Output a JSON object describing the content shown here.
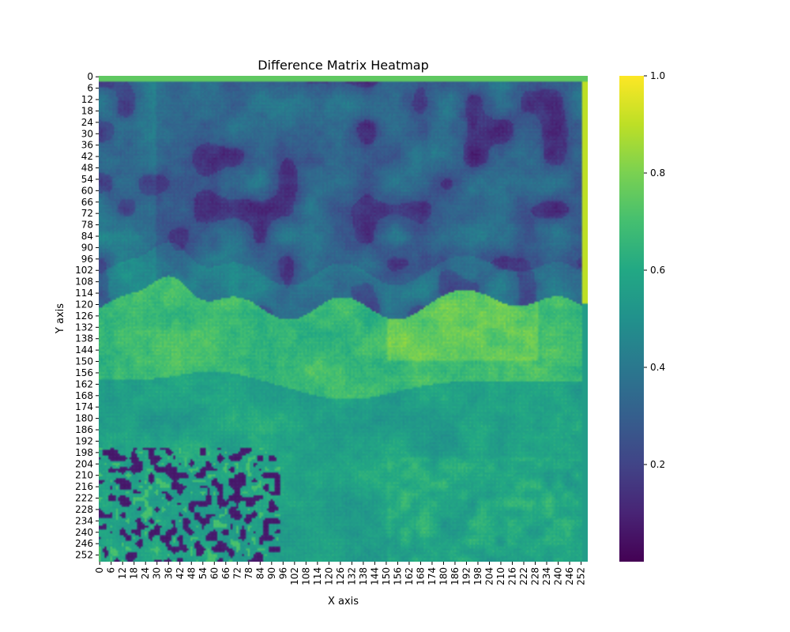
{
  "chart_data": {
    "type": "heatmap",
    "title": "Difference Matrix Heatmap",
    "xlabel": "X axis",
    "ylabel": "Y axis",
    "x_ticks": [
      0,
      6,
      12,
      18,
      24,
      30,
      36,
      42,
      48,
      54,
      60,
      66,
      72,
      78,
      84,
      90,
      96,
      102,
      108,
      114,
      120,
      126,
      132,
      138,
      144,
      150,
      156,
      162,
      168,
      174,
      180,
      186,
      192,
      198,
      204,
      210,
      216,
      222,
      228,
      234,
      240,
      246,
      252
    ],
    "y_ticks": [
      0,
      6,
      12,
      18,
      24,
      30,
      36,
      42,
      48,
      54,
      60,
      66,
      72,
      78,
      84,
      90,
      96,
      102,
      108,
      114,
      120,
      126,
      132,
      138,
      144,
      150,
      156,
      162,
      168,
      174,
      180,
      186,
      192,
      198,
      204,
      210,
      216,
      222,
      228,
      234,
      240,
      246,
      252
    ],
    "matrix_size": [
      256,
      256
    ],
    "colormap": "viridis",
    "colorbar": {
      "ticks": [
        0.2,
        0.4,
        0.6,
        0.8,
        1.0
      ],
      "tick_labels": [
        "0.2",
        "0.4",
        "0.6",
        "0.8",
        "1.0"
      ],
      "range": [
        0.0,
        1.0
      ]
    },
    "grid": false,
    "approx_region_values": [
      {
        "region": "rows 0-2 (top border)",
        "value": 0.75
      },
      {
        "region": "cols 253-255 (right border)",
        "value": 0.9
      },
      {
        "region": "rows 3-110 (upper area)",
        "value": 0.22
      },
      {
        "region": "rows 110-165 (middle band)",
        "value": 0.62
      },
      {
        "region": "rows 165-255 (lower area)",
        "value": 0.5
      }
    ]
  }
}
